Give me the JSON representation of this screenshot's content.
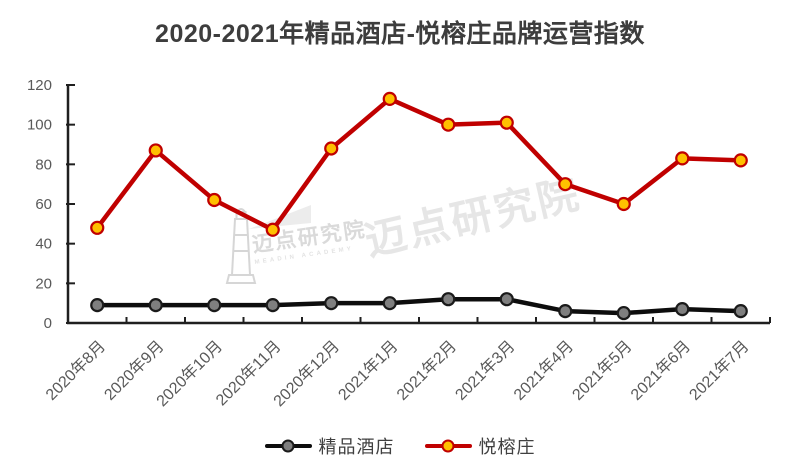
{
  "title": "2020-2021年精品酒店-悦榕庄品牌运营指数",
  "watermark": {
    "text": "迈点研究院",
    "subtext": "MEADIN ACADEMY"
  },
  "chart_data": {
    "type": "line",
    "title": "2020-2021年精品酒店-悦榕庄品牌运营指数",
    "categories": [
      "2020年8月",
      "2020年9月",
      "2020年10月",
      "2020年11月",
      "2020年12月",
      "2021年1月",
      "2021年2月",
      "2021年3月",
      "2021年4月",
      "2021年5月",
      "2021年6月",
      "2021年7月"
    ],
    "series": [
      {
        "name": "精品酒店",
        "values": [
          9,
          9,
          9,
          9,
          10,
          10,
          12,
          12,
          6,
          5,
          7,
          6
        ],
        "line_color": "#0d0d0d",
        "marker_fill": "#7f7f7f",
        "marker_stroke": "#1a1a1a"
      },
      {
        "name": "悦榕庄",
        "values": [
          48,
          87,
          62,
          47,
          88,
          113,
          100,
          101,
          70,
          60,
          83,
          82
        ],
        "line_color": "#c00000",
        "marker_fill": "#ffc000",
        "marker_stroke": "#c00000"
      }
    ],
    "xlabel": "",
    "ylabel": "",
    "ylim": [
      0,
      120
    ],
    "yticks": [
      0,
      20,
      40,
      60,
      80,
      100,
      120
    ],
    "grid": false,
    "legend_position": "bottom",
    "axis_color": "#1f1f1f",
    "tick_label_color": "#595959"
  }
}
